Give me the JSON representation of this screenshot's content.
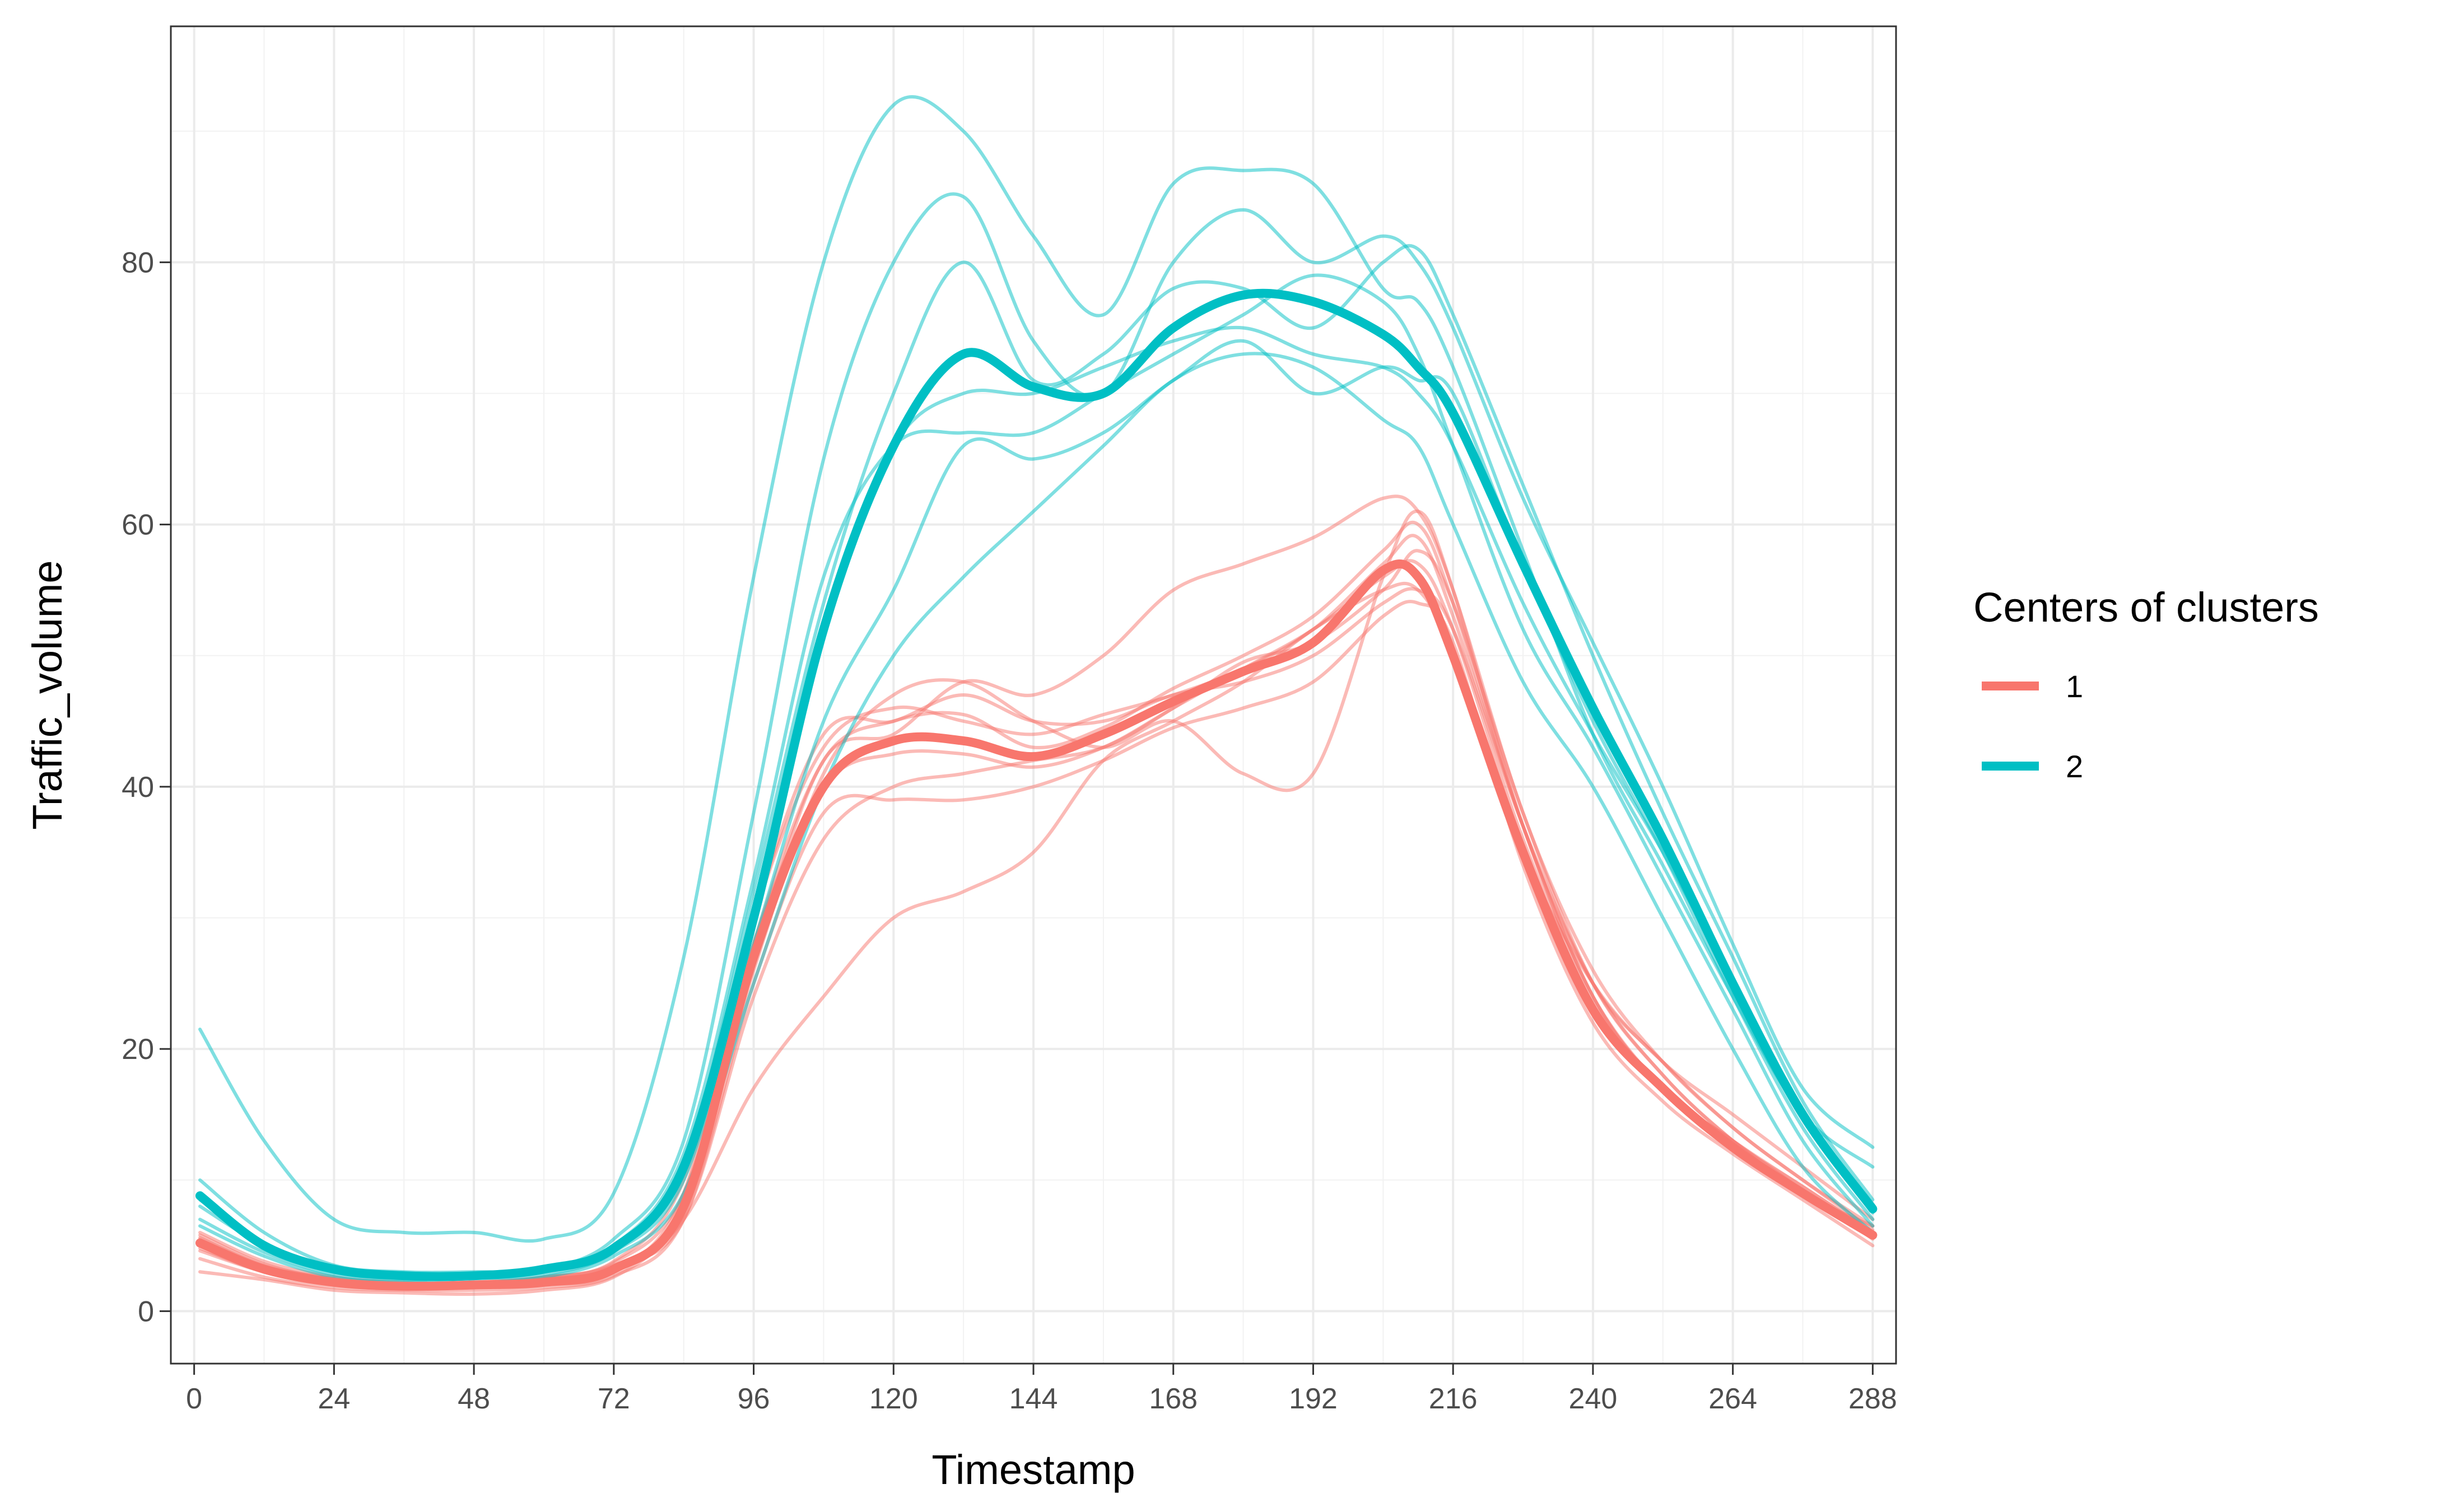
{
  "chart_data": {
    "type": "line",
    "xlabel": "Timestamp",
    "ylabel": "Traffic_volume",
    "xlim": [
      -4,
      292
    ],
    "ylim": [
      -4,
      98
    ],
    "x_ticks": [
      0,
      24,
      48,
      72,
      96,
      120,
      144,
      168,
      192,
      216,
      240,
      264,
      288
    ],
    "x_tick_labels": [
      "0",
      "24",
      "48",
      "72",
      "96",
      "120",
      "144",
      "168",
      "192",
      "216",
      "240",
      "264",
      "288"
    ],
    "y_ticks": [
      0,
      20,
      40,
      60,
      80
    ],
    "y_tick_labels": [
      "0",
      "20",
      "40",
      "60",
      "80"
    ],
    "grid": true,
    "legend": {
      "title": "Centers of clusters",
      "position": "right",
      "entries": [
        {
          "label": "1",
          "color": "#F8766D"
        },
        {
          "label": "2",
          "color": "#00BFC4"
        }
      ]
    },
    "x": [
      1,
      12,
      24,
      36,
      48,
      60,
      72,
      84,
      96,
      108,
      120,
      132,
      144,
      156,
      168,
      180,
      192,
      204,
      210,
      216,
      228,
      240,
      252,
      264,
      276,
      288
    ],
    "centers": [
      {
        "name": "1",
        "color": "#F8766D",
        "values": [
          5.2,
          3.2,
          2.2,
          1.9,
          2.0,
          2.2,
          3.2,
          8,
          27,
          40,
          43.5,
          43.5,
          42.3,
          44,
          46.5,
          48.8,
          51,
          56.5,
          56,
          50,
          35,
          23,
          17,
          12.5,
          9,
          5.8
        ]
      },
      {
        "name": "2",
        "color": "#00BFC4",
        "values": [
          8.8,
          5,
          3.2,
          2.7,
          2.7,
          3.2,
          4.8,
          11,
          30,
          52,
          66,
          73,
          70.5,
          70,
          75,
          77.5,
          77,
          74.5,
          72,
          68.5,
          57,
          46,
          36,
          25,
          15,
          7.8
        ]
      }
    ],
    "cluster_members": [
      {
        "cluster": "1",
        "values": [
          4.6,
          3.0,
          2.0,
          1.7,
          1.8,
          2.0,
          3.0,
          9,
          30,
          44,
          45,
          47,
          45,
          45,
          47,
          48,
          50,
          54,
          55,
          52,
          37,
          25,
          18,
          13,
          9,
          6.5
        ]
      },
      {
        "cluster": "1",
        "values": [
          5.8,
          3.6,
          2.4,
          2.1,
          2.2,
          2.6,
          3.8,
          10,
          30,
          43,
          46,
          45,
          44,
          45.5,
          47,
          49,
          52,
          57,
          59,
          53,
          37,
          24,
          17,
          13,
          9.2,
          5.5
        ]
      },
      {
        "cluster": "1",
        "values": [
          6.0,
          3.8,
          2.6,
          2.2,
          2.1,
          2.5,
          3.5,
          7,
          24,
          36,
          40,
          41,
          42,
          43,
          46,
          49.5,
          51,
          55,
          58,
          54,
          38,
          25,
          18,
          13,
          9.5,
          6.0
        ]
      },
      {
        "cluster": "1",
        "values": [
          4.0,
          2.6,
          1.8,
          1.6,
          1.6,
          1.8,
          2.7,
          7,
          25,
          38,
          39,
          39,
          40,
          42,
          44.5,
          46,
          48,
          53,
          54,
          51,
          34,
          22,
          16,
          12,
          8.5,
          5.0
        ]
      },
      {
        "cluster": "1",
        "values": [
          5.0,
          3.2,
          2.3,
          2.0,
          2.1,
          2.3,
          3.4,
          8,
          26,
          41,
          47,
          48,
          45,
          43,
          45,
          41,
          41,
          56,
          61,
          55,
          37,
          25,
          19,
          14,
          10,
          6.2
        ]
      },
      {
        "cluster": "1",
        "values": [
          3.0,
          2.4,
          1.6,
          1.4,
          1.3,
          1.6,
          2.6,
          7,
          17,
          24,
          30,
          32,
          35,
          42,
          45,
          48,
          52,
          55,
          55,
          50,
          35,
          25,
          19,
          15,
          11,
          7.0
        ]
      },
      {
        "cluster": "1",
        "values": [
          5.5,
          3.4,
          2.4,
          2.0,
          2.0,
          2.4,
          3.4,
          8,
          28,
          42,
          45,
          45.5,
          43,
          44.5,
          47.5,
          50,
          53,
          58,
          60,
          54,
          37,
          24,
          17,
          13,
          9.5,
          6.0
        ]
      },
      {
        "cluster": "1",
        "values": [
          4.8,
          3.0,
          2.1,
          1.8,
          1.9,
          2.2,
          3.2,
          8,
          28,
          40,
          42.5,
          42.5,
          41.5,
          43,
          46,
          49,
          52,
          56,
          57,
          52,
          36,
          24,
          17,
          12.5,
          9.0,
          5.6
        ]
      },
      {
        "cluster": "1",
        "values": [
          5.6,
          3.5,
          2.5,
          2.1,
          2.2,
          2.6,
          3.7,
          9,
          27,
          42,
          44,
          48,
          47,
          50,
          55,
          57,
          59,
          62,
          61,
          55,
          38,
          26,
          19,
          14,
          10,
          6.5
        ]
      },
      {
        "cluster": "2",
        "values": [
          21.5,
          13,
          7,
          6.0,
          6.0,
          5.5,
          9,
          27,
          56,
          80,
          92,
          90,
          82,
          76,
          86,
          87,
          86,
          78,
          77,
          72,
          58,
          44,
          34,
          24,
          15,
          11
        ]
      },
      {
        "cluster": "2",
        "values": [
          10,
          6,
          3.5,
          3.0,
          3.0,
          3.2,
          5.5,
          13,
          38,
          65,
          80,
          85,
          74,
          70,
          80,
          84,
          80,
          82,
          80,
          75,
          62,
          51,
          40,
          28,
          17,
          12.5
        ]
      },
      {
        "cluster": "2",
        "values": [
          8,
          5,
          3.0,
          2.6,
          2.6,
          3.0,
          4.8,
          11,
          32,
          54,
          70,
          80,
          71,
          73,
          78,
          78,
          75,
          80,
          81,
          76,
          63,
          50,
          38,
          27,
          16,
          8.5
        ]
      },
      {
        "cluster": "2",
        "values": [
          7,
          4.5,
          2.8,
          2.4,
          2.5,
          2.8,
          4.5,
          10,
          28,
          45,
          55,
          66,
          65,
          67,
          71,
          74,
          70,
          72,
          71,
          70,
          57,
          45,
          35,
          24,
          14,
          7.0
        ]
      },
      {
        "cluster": "2",
        "values": [
          9,
          5.2,
          3.2,
          2.8,
          2.8,
          3.3,
          5,
          12,
          33,
          56,
          66,
          67,
          67,
          70,
          73,
          76,
          79,
          77,
          73,
          66,
          52,
          43,
          33,
          23,
          13,
          6.5
        ]
      },
      {
        "cluster": "2",
        "values": [
          6.5,
          4.2,
          2.6,
          2.2,
          2.2,
          2.6,
          4.2,
          9,
          25,
          40,
          50,
          56,
          61,
          66,
          71,
          73,
          72,
          68,
          66,
          60,
          48,
          40,
          30,
          20,
          11,
          6.0
        ]
      },
      {
        "cluster": "2",
        "values": [
          8.5,
          5,
          3.0,
          2.6,
          2.6,
          3.0,
          4.6,
          11,
          30,
          52,
          66,
          70,
          70,
          72,
          74,
          75,
          73,
          72,
          70,
          66,
          54,
          44,
          35,
          25,
          15,
          7.5
        ]
      }
    ]
  }
}
